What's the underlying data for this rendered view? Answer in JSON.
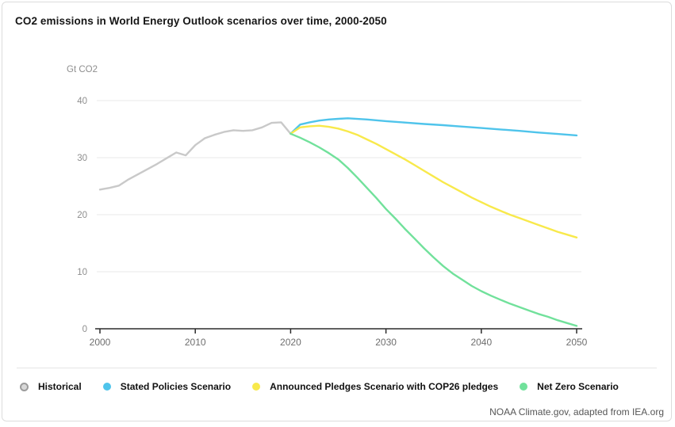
{
  "page": {
    "attribution": "NOAA Climate.gov, adapted from IEA.org"
  },
  "chart_data": {
    "type": "line",
    "title": "CO2 emissions in World Energy Outlook scenarios over time, 2000-2050",
    "unit_label": "Gt CO2",
    "xlabel": "",
    "ylabel": "Gt CO2",
    "xlim": [
      2000,
      2050
    ],
    "ylim": [
      0,
      40
    ],
    "x_ticks": [
      2000,
      2010,
      2020,
      2030,
      2040,
      2050
    ],
    "y_ticks": [
      0,
      10,
      20,
      30,
      40
    ],
    "grid": "horizontal",
    "legend_position": "bottom",
    "colors": {
      "historical": "#c9c9c9",
      "stated_policies": "#4fc4eb",
      "announced_pledges": "#f8e94b",
      "net_zero": "#71e19b",
      "axis": "#2b2b2b",
      "gridline": "#e8e8e8"
    },
    "series": [
      {
        "name": "Historical",
        "color": "#c9c9c9",
        "marker": "ring",
        "points": [
          [
            2000,
            24.4
          ],
          [
            2001,
            24.7
          ],
          [
            2002,
            25.1
          ],
          [
            2003,
            26.2
          ],
          [
            2004,
            27.1
          ],
          [
            2005,
            28.0
          ],
          [
            2006,
            28.9
          ],
          [
            2007,
            29.9
          ],
          [
            2008,
            30.9
          ],
          [
            2009,
            30.4
          ],
          [
            2010,
            32.2
          ],
          [
            2011,
            33.4
          ],
          [
            2012,
            34.0
          ],
          [
            2013,
            34.5
          ],
          [
            2014,
            34.8
          ],
          [
            2015,
            34.7
          ],
          [
            2016,
            34.8
          ],
          [
            2017,
            35.3
          ],
          [
            2018,
            36.1
          ],
          [
            2019,
            36.2
          ],
          [
            2020,
            34.2
          ]
        ]
      },
      {
        "name": "Stated Policies Scenario",
        "color": "#4fc4eb",
        "marker": "dot",
        "points": [
          [
            2020,
            34.2
          ],
          [
            2021,
            35.8
          ],
          [
            2022,
            36.2
          ],
          [
            2023,
            36.5
          ],
          [
            2024,
            36.7
          ],
          [
            2025,
            36.8
          ],
          [
            2026,
            36.9
          ],
          [
            2028,
            36.7
          ],
          [
            2030,
            36.4
          ],
          [
            2032,
            36.15
          ],
          [
            2034,
            35.9
          ],
          [
            2036,
            35.7
          ],
          [
            2038,
            35.45
          ],
          [
            2040,
            35.2
          ],
          [
            2042,
            34.95
          ],
          [
            2044,
            34.7
          ],
          [
            2046,
            34.4
          ],
          [
            2048,
            34.15
          ],
          [
            2050,
            33.9
          ]
        ]
      },
      {
        "name": "Announced Pledges Scenario with COP26 pledges",
        "color": "#f8e94b",
        "marker": "dot",
        "points": [
          [
            2020,
            34.2
          ],
          [
            2021,
            35.3
          ],
          [
            2022,
            35.5
          ],
          [
            2023,
            35.6
          ],
          [
            2024,
            35.4
          ],
          [
            2025,
            35.1
          ],
          [
            2026,
            34.6
          ],
          [
            2027,
            34.0
          ],
          [
            2028,
            33.2
          ],
          [
            2029,
            32.4
          ],
          [
            2030,
            31.5
          ],
          [
            2031,
            30.6
          ],
          [
            2032,
            29.7
          ],
          [
            2033,
            28.7
          ],
          [
            2034,
            27.7
          ],
          [
            2035,
            26.7
          ],
          [
            2036,
            25.7
          ],
          [
            2037,
            24.8
          ],
          [
            2038,
            23.9
          ],
          [
            2039,
            23.0
          ],
          [
            2040,
            22.2
          ],
          [
            2041,
            21.4
          ],
          [
            2042,
            20.7
          ],
          [
            2043,
            20.0
          ],
          [
            2044,
            19.4
          ],
          [
            2045,
            18.8
          ],
          [
            2046,
            18.2
          ],
          [
            2047,
            17.6
          ],
          [
            2048,
            17.0
          ],
          [
            2049,
            16.5
          ],
          [
            2050,
            16.0
          ]
        ]
      },
      {
        "name": "Net Zero Scenario",
        "color": "#71e19b",
        "marker": "dot",
        "points": [
          [
            2020,
            34.2
          ],
          [
            2021,
            33.5
          ],
          [
            2022,
            32.7
          ],
          [
            2023,
            31.8
          ],
          [
            2024,
            30.8
          ],
          [
            2025,
            29.7
          ],
          [
            2026,
            28.2
          ],
          [
            2027,
            26.5
          ],
          [
            2028,
            24.7
          ],
          [
            2029,
            22.9
          ],
          [
            2030,
            21.0
          ],
          [
            2031,
            19.3
          ],
          [
            2032,
            17.5
          ],
          [
            2033,
            15.8
          ],
          [
            2034,
            14.1
          ],
          [
            2035,
            12.5
          ],
          [
            2036,
            11.0
          ],
          [
            2037,
            9.7
          ],
          [
            2038,
            8.6
          ],
          [
            2039,
            7.5
          ],
          [
            2040,
            6.6
          ],
          [
            2041,
            5.8
          ],
          [
            2042,
            5.1
          ],
          [
            2043,
            4.4
          ],
          [
            2044,
            3.8
          ],
          [
            2045,
            3.2
          ],
          [
            2046,
            2.6
          ],
          [
            2047,
            2.1
          ],
          [
            2048,
            1.5
          ],
          [
            2049,
            1.0
          ],
          [
            2050,
            0.5
          ]
        ]
      }
    ]
  }
}
